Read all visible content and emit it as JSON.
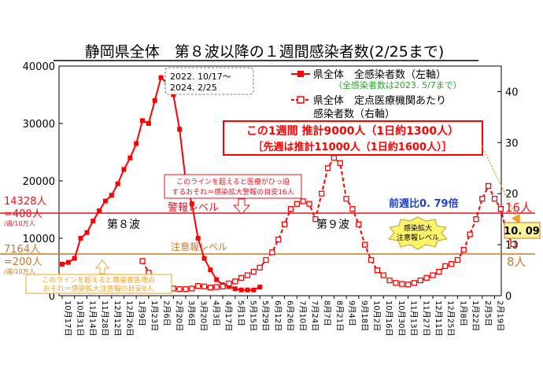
{
  "chart_data": {
    "type": "line",
    "title": "静岡県全体　第８波以降の１週間感染者数(2/25まで)",
    "period_label_1": "2022. 10/17～",
    "period_label_2": "2024. 2/25",
    "left_axis": {
      "ylim": [
        0,
        40000
      ],
      "ticks": [
        "0",
        "10000",
        "20000",
        "30000",
        "40000"
      ]
    },
    "right_axis": {
      "ylim": [
        0,
        45
      ],
      "ticks": [
        "0",
        "10",
        "20",
        "30",
        "40"
      ]
    },
    "x_ticks": [
      "10月17日",
      "10月31日",
      "11月14日",
      "11月28日",
      "12月12日",
      "12月26日",
      "1月9日",
      "1月23日",
      "2月6日",
      "2月20日",
      "3月6日",
      "3月20日",
      "4月3日",
      "4月17日",
      "5月1日",
      "5月15日",
      "5月29日",
      "6月12日",
      "6月26日",
      "7月10日",
      "7月24日",
      "8月7日",
      "8月21日",
      "9月4日",
      "9月18日",
      "10月2日",
      "10月16日",
      "10月30日",
      "11月13日",
      "11月27日",
      "12月11日",
      "12月25日",
      "1月8日",
      "1月22日",
      "2月5日",
      "2月19日"
    ],
    "series": [
      {
        "name": "県全体　全感染者数（左軸）",
        "axis": "left",
        "note": "（全感染者数は2023. 5/7まで）",
        "color": "#ff0000",
        "x_start": 0,
        "values": [
          5500,
          5800,
          6500,
          10000,
          11000,
          13000,
          14800,
          16500,
          17500,
          19500,
          22000,
          24000,
          26500,
          30500,
          30000,
          34000,
          38000,
          37000,
          35000,
          29000,
          20000,
          16000,
          10000,
          6500,
          4500,
          2800,
          1900,
          1600,
          1200,
          1000,
          1000,
          1000,
          1500
        ]
      },
      {
        "name": "県全体　定点医療機関あたり感染者数（右軸）",
        "axis": "right",
        "color": "#ff0000",
        "x_start": 13,
        "values": [
          6.8,
          4.5,
          3.0,
          2.2,
          1.7,
          1.4,
          1.3,
          1.3,
          1.4,
          1.9,
          1.8,
          1.6,
          1.7,
          1.8,
          2.4,
          2.8,
          3.5,
          4.0,
          4.7,
          5.5,
          7.0,
          8.5,
          11,
          14,
          17,
          18,
          18.5,
          18,
          15,
          20,
          25,
          27,
          26,
          19,
          17,
          14,
          10,
          7,
          5,
          4,
          3,
          2.5,
          2.3,
          2.2,
          2.5,
          3,
          3.5,
          4,
          4.7,
          5.8,
          6.2,
          7,
          9,
          12,
          15,
          19,
          21.5,
          19,
          17,
          12,
          10.09
        ]
      }
    ],
    "thresholds": [
      {
        "label": "警報レベル",
        "value_right": 16,
        "left_label_1": "14328人",
        "left_label_2": "=400人",
        "left_label_3": "/週/10万人",
        "right_label": "16人",
        "color": "#e8141e"
      },
      {
        "label": "注意報レベル",
        "value_right": 8,
        "left_label_1": "7164人",
        "left_label_2": "=200人",
        "left_label_3": "/週/10万人",
        "right_label": "8人",
        "color": "#c8782a"
      }
    ],
    "annotations": {
      "wave8": "第８波",
      "wave9": "第９波",
      "alarm_note_1": "このラインを超えると医療がひっ迫",
      "alarm_note_2": "するおそれ＝感染拡大警報の目安16人",
      "caution_note_1": "このラインを超えると感染者急増の",
      "caution_note_2": "おそれ＝感染拡大注意報の目安8人",
      "summary_1": "この1週間 推計9000人（1日約1300人）",
      "summary_2": "［先週は推計11000人（1日約1600人）］",
      "ratio": "前週比0. 79倍",
      "latest_value": "10. 09",
      "badge_1": "感染拡大",
      "badge_2": "注意報レベル"
    },
    "legend_position": "top-right",
    "grid": false
  }
}
